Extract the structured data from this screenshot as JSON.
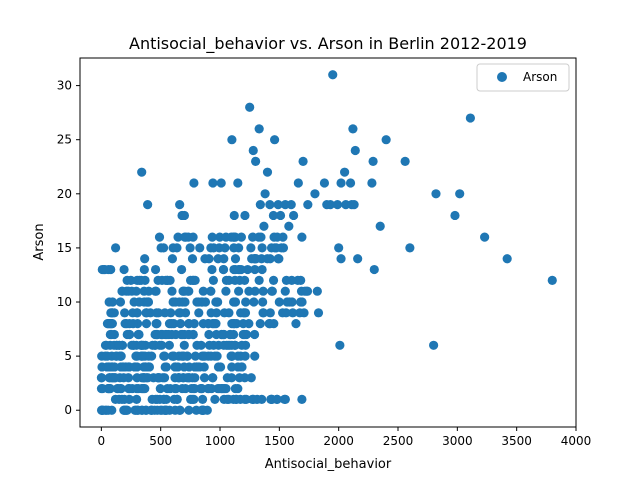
{
  "chart_data": {
    "type": "scatter",
    "title": "Antisocial_behavior vs. Arson in Berlin 2012-2019",
    "xlabel": "Antisocial_behavior",
    "ylabel": "Arson",
    "xlim": [
      -180,
      4000
    ],
    "ylim": [
      -1.55,
      32.55
    ],
    "xticks": [
      0,
      500,
      1000,
      1500,
      2000,
      2500,
      3000,
      3500,
      4000
    ],
    "yticks": [
      0,
      5,
      10,
      15,
      20,
      25,
      30
    ],
    "grid": false,
    "legend": {
      "position": "top-right",
      "entries": [
        "Arson"
      ]
    },
    "series": [
      {
        "name": "Arson",
        "color": "#1f77b4",
        "marker": "circle",
        "x": [
          1950,
          3110,
          1250,
          1100,
          1330,
          1280,
          1460,
          2120,
          2400,
          1300,
          1700,
          2140,
          2050,
          2290,
          2560,
          1660,
          1880,
          1400,
          2280,
          2100,
          2020,
          1150,
          1380,
          2350,
          1800,
          1930,
          1120,
          1490,
          1740,
          1510,
          1620,
          2820,
          3020,
          340,
          390,
          660,
          1210,
          1370,
          940,
          780,
          1010,
          1550,
          1900,
          1990,
          2060,
          2110,
          2130,
          1340,
          1600,
          1420,
          2980,
          3230,
          490,
          680,
          700,
          1050,
          1180,
          1690,
          2600,
          3420,
          3800,
          1530,
          2160,
          2020,
          2300,
          2800,
          1480,
          1690,
          2010,
          1450,
          1580,
          1260,
          2000,
          120,
          60,
          30,
          1820,
          1550,
          1640,
          1830
        ],
        "y": [
          31,
          27,
          28,
          25,
          26,
          24,
          25,
          26,
          25,
          23,
          23,
          24,
          22,
          23,
          23,
          21,
          21,
          22,
          21,
          21,
          21,
          21,
          20,
          17,
          20,
          19,
          18,
          19,
          19,
          18,
          18,
          20,
          20,
          22,
          19,
          19,
          18,
          17,
          21,
          21,
          21,
          19,
          19,
          19,
          19,
          19,
          19,
          19,
          19,
          19,
          18,
          16,
          16,
          18,
          18,
          16,
          16,
          16,
          15,
          14,
          12,
          16,
          14,
          14,
          13,
          6,
          1,
          1,
          6,
          18,
          17,
          15,
          15,
          15,
          13,
          13,
          11,
          11,
          8,
          9
        ]
      }
    ],
    "point_cloud": {
      "note_x_range": [
        0,
        1800
      ],
      "y_levels": [
        0,
        1,
        2,
        3,
        4,
        5,
        6,
        7,
        8,
        9,
        10,
        11,
        12,
        13,
        14,
        15,
        16
      ]
    }
  }
}
